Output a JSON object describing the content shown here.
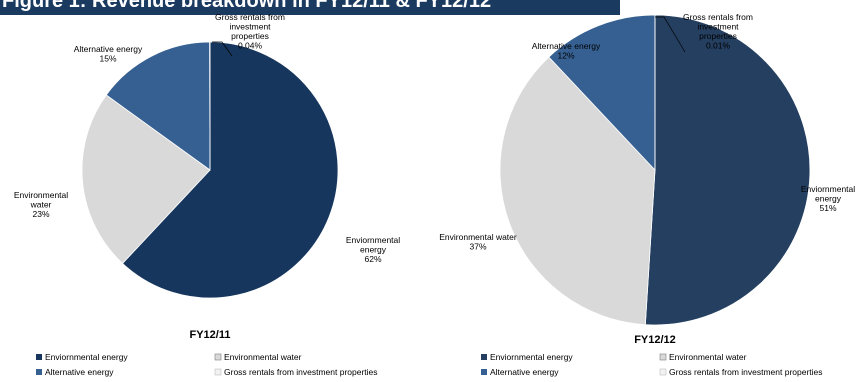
{
  "header": {
    "title": "Figure 1: Revenue breakdown in FY12/11 & FY12/12"
  },
  "colors": {
    "env_energy_1": "#17365d",
    "env_energy_2": "#243f60",
    "env_water": "#d9d9d9",
    "alt_energy": "#366092",
    "gross_rentals": "#f2f2f2",
    "header": "#1b3a60"
  },
  "chart_data": [
    {
      "type": "pie",
      "title": "FY12/11",
      "slices": [
        {
          "name": "Enviornmental energy",
          "value": 62,
          "label_lines": [
            "Enviornmental",
            "energy",
            "62%"
          ]
        },
        {
          "name": "Environmental water",
          "value": 23,
          "label_lines": [
            "Environmental",
            "water",
            "23%"
          ]
        },
        {
          "name": "Alternative energy",
          "value": 15,
          "label_lines": [
            "Alternative energy",
            "15%"
          ]
        },
        {
          "name": "Gross rentals from investment properties",
          "value": 0.04,
          "label_lines": [
            "Gross rentals from",
            "investment",
            "properties",
            "0.04%"
          ]
        }
      ],
      "legend": [
        "Enviornmental energy",
        "Environmental water",
        "Alternative energy",
        "Gross rentals from investment properties"
      ]
    },
    {
      "type": "pie",
      "title": "FY12/12",
      "slices": [
        {
          "name": "Enviornmental energy",
          "value": 51,
          "label_lines": [
            "Enviornmental",
            "energy",
            "51%"
          ]
        },
        {
          "name": "Environmental water",
          "value": 37,
          "label_lines": [
            "Environmental water",
            "37%"
          ]
        },
        {
          "name": "Alternative energy",
          "value": 12,
          "label_lines": [
            "Alternative energy",
            "12%"
          ]
        },
        {
          "name": "Gross rentals from investment properties",
          "value": 0.01,
          "label_lines": [
            "Gross rentals from",
            "investment",
            "properties",
            "0.01%"
          ]
        }
      ],
      "legend": [
        "Enviornmental energy",
        "Environmental water",
        "Alternative energy",
        "Gross rentals from investment properties"
      ]
    }
  ]
}
